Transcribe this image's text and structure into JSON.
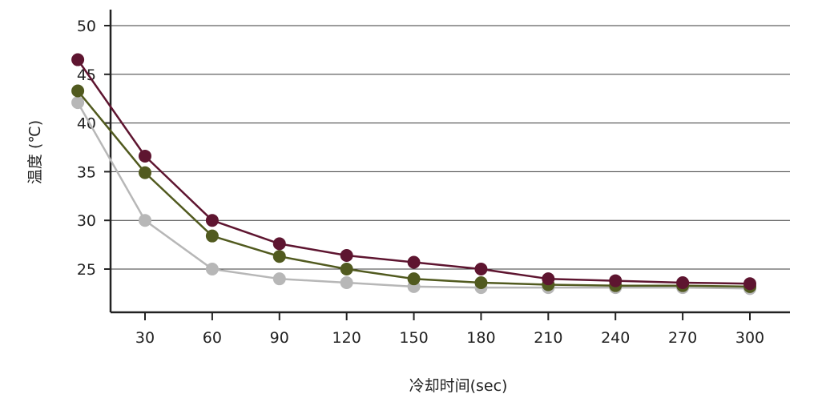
{
  "chart_data": {
    "type": "line",
    "title": "",
    "xlabel": "冷却时间(sec)",
    "ylabel": "温度 (℃)",
    "x_ticks": [
      30,
      60,
      90,
      120,
      150,
      180,
      210,
      240,
      270,
      300
    ],
    "y_ticks": [
      25,
      30,
      35,
      40,
      45,
      50
    ],
    "xlim": [
      0,
      315
    ],
    "ylim": [
      21.5,
      51.5
    ],
    "grid": true,
    "legend": "none",
    "x": [
      0,
      30,
      60,
      90,
      120,
      150,
      180,
      210,
      240,
      270,
      300
    ],
    "series": [
      {
        "color": "#5e1530",
        "values": [
          46.5,
          36.6,
          30.0,
          27.6,
          26.4,
          25.7,
          25.0,
          24.0,
          23.8,
          23.6,
          23.5
        ]
      },
      {
        "color": "#515a1f",
        "values": [
          43.3,
          34.9,
          28.4,
          26.3,
          25.0,
          24.0,
          23.6,
          23.4,
          23.3,
          23.3,
          23.2
        ]
      },
      {
        "color": "#b7b7b7",
        "values": [
          42.1,
          30.0,
          25.0,
          24.0,
          23.6,
          23.2,
          23.1,
          23.1,
          23.1,
          23.1,
          23.0
        ]
      }
    ]
  }
}
